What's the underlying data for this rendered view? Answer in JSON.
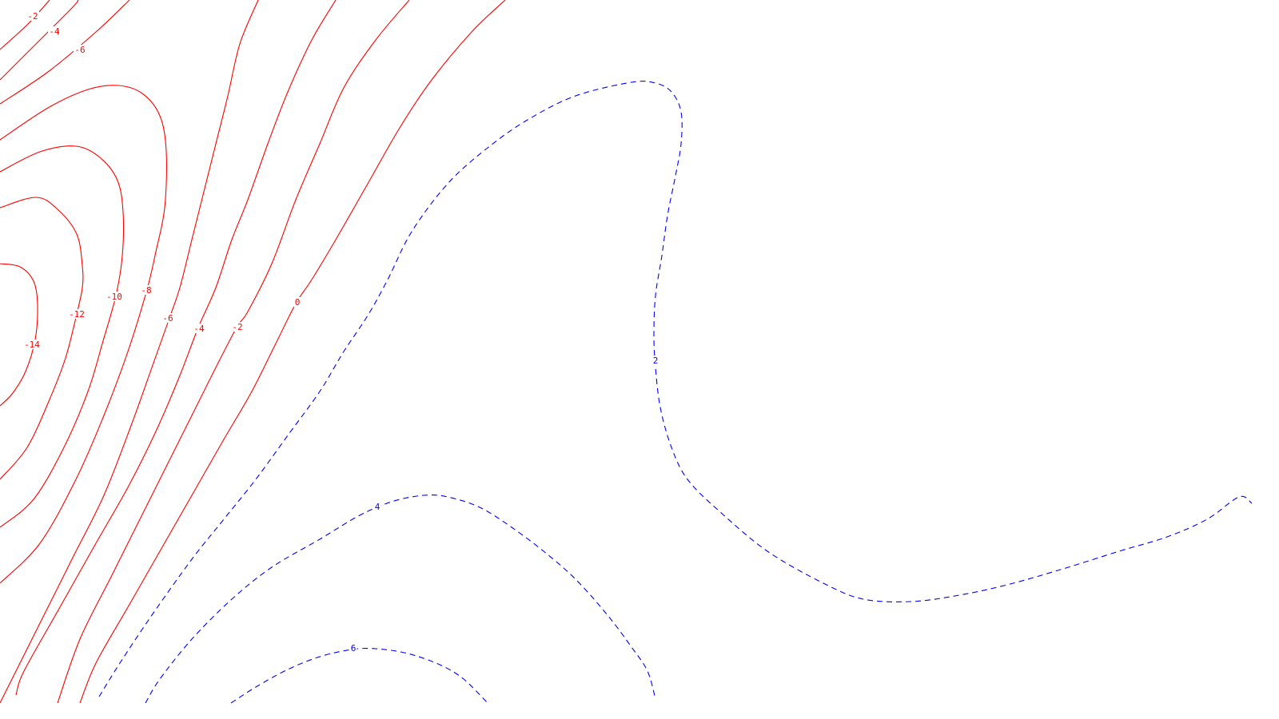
{
  "chart_data": {
    "type": "contour",
    "title": "",
    "xlabel": "",
    "ylabel": "",
    "grid": false,
    "legend": "none",
    "styles": {
      "negative": {
        "color": "#ff0000",
        "line": "solid"
      },
      "positive": {
        "color": "#0000ff",
        "line": "dashed"
      }
    },
    "levels": [
      {
        "id": "neg14",
        "value": -14,
        "label": "-14",
        "sign": "negative"
      },
      {
        "id": "neg12",
        "value": -12,
        "label": "-12",
        "sign": "negative"
      },
      {
        "id": "neg10",
        "value": -10,
        "label": "-10",
        "sign": "negative"
      },
      {
        "id": "neg8",
        "value": -8,
        "label": "-8",
        "sign": "negative"
      },
      {
        "id": "neg6",
        "value": -6,
        "label": "-6",
        "sign": "negative"
      },
      {
        "id": "neg4",
        "value": -4,
        "label": "-4",
        "sign": "negative"
      },
      {
        "id": "neg2",
        "value": -2,
        "label": "-2",
        "sign": "negative"
      },
      {
        "id": "zero",
        "value": 0,
        "label": "0",
        "sign": "negative"
      },
      {
        "id": "neg6b",
        "value": -6,
        "label": "-6",
        "sign": "negative"
      },
      {
        "id": "neg4b",
        "value": -4,
        "label": "-4",
        "sign": "negative"
      },
      {
        "id": "neg2b",
        "value": -2,
        "label": "-2",
        "sign": "negative"
      },
      {
        "id": "pos2",
        "value": 2,
        "label": "2",
        "sign": "positive"
      },
      {
        "id": "pos4",
        "value": 4,
        "label": "4",
        "sign": "positive"
      },
      {
        "id": "pos6",
        "value": 6,
        "label": "6",
        "sign": "positive"
      }
    ]
  }
}
